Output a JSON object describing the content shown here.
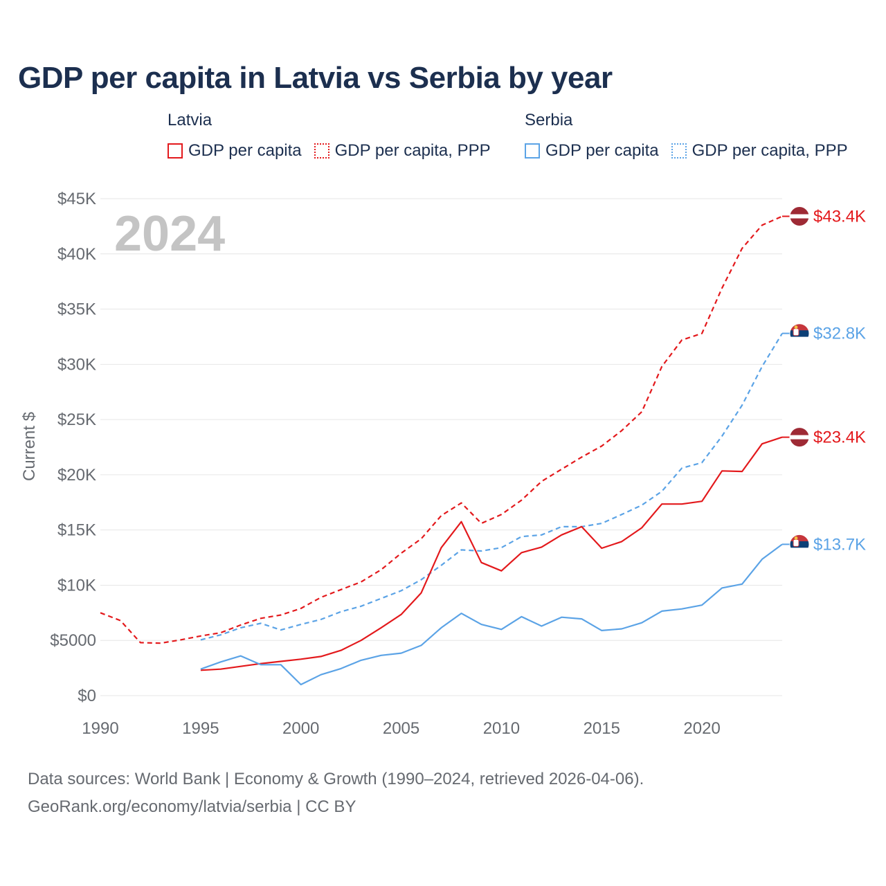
{
  "title": "GDP per capita in Latvia vs Serbia by year",
  "legend": {
    "groups": [
      {
        "name": "Latvia",
        "color": "#e3191c",
        "items": [
          {
            "label": "GDP per capita",
            "style": "solid"
          },
          {
            "label": "GDP per capita, PPP",
            "style": "dotted"
          }
        ]
      },
      {
        "name": "Serbia",
        "color": "#5ba3e6",
        "items": [
          {
            "label": "GDP per capita",
            "style": "solid"
          },
          {
            "label": "GDP per capita, PPP",
            "style": "dotted"
          }
        ]
      }
    ]
  },
  "source": {
    "line1": "Data sources: World Bank | Economy & Growth (1990–2024, retrieved 2026-04-06).",
    "line2": "GeoRank.org/economy/latvia/serbia | CC BY"
  },
  "chart_data": {
    "type": "line",
    "title": "GDP per capita in Latvia vs Serbia by year",
    "year_label": "2024",
    "xlabel": "",
    "ylabel": "Current $",
    "xlim": [
      1990,
      2024
    ],
    "ylim": [
      0,
      45000
    ],
    "x_ticks": [
      1990,
      1995,
      2000,
      2005,
      2010,
      2015,
      2020
    ],
    "y_ticks": [
      0,
      5000,
      10000,
      15000,
      20000,
      25000,
      30000,
      35000,
      40000,
      45000
    ],
    "y_tick_labels": [
      "$0",
      "$5000",
      "$10K",
      "$15K",
      "$20K",
      "$25K",
      "$30K",
      "$35K",
      "$40K",
      "$45K"
    ],
    "grid": true,
    "series": [
      {
        "name": "Latvia GDP per capita, PPP",
        "country": "Latvia",
        "color": "#e3191c",
        "dash": "dashed",
        "end_label": "$43.4K",
        "flag": "latvia",
        "x": [
          1990,
          1991,
          1992,
          1993,
          1994,
          1995,
          1996,
          1997,
          1998,
          1999,
          2000,
          2001,
          2002,
          2003,
          2004,
          2005,
          2006,
          2007,
          2008,
          2009,
          2010,
          2011,
          2012,
          2013,
          2014,
          2015,
          2016,
          2017,
          2018,
          2019,
          2020,
          2021,
          2022,
          2023,
          2024
        ],
        "values": [
          7500,
          6800,
          4800,
          4750,
          5050,
          5400,
          5700,
          6400,
          7000,
          7300,
          7900,
          8900,
          9600,
          10300,
          11400,
          12900,
          14200,
          16300,
          17450,
          15600,
          16400,
          17700,
          19400,
          20500,
          21600,
          22600,
          24000,
          25700,
          29800,
          32200,
          32800,
          36900,
          40500,
          42600,
          43400
        ]
      },
      {
        "name": "Serbia GDP per capita, PPP",
        "country": "Serbia",
        "color": "#5ba3e6",
        "dash": "dashed",
        "end_label": "$32.8K",
        "flag": "serbia",
        "x": [
          1995,
          1996,
          1997,
          1998,
          1999,
          2000,
          2001,
          2002,
          2003,
          2004,
          2005,
          2006,
          2007,
          2008,
          2009,
          2010,
          2011,
          2012,
          2013,
          2014,
          2015,
          2016,
          2017,
          2018,
          2019,
          2020,
          2021,
          2022,
          2023,
          2024
        ],
        "values": [
          5050,
          5500,
          6150,
          6550,
          5950,
          6450,
          6900,
          7600,
          8100,
          8800,
          9500,
          10500,
          11800,
          13200,
          13100,
          13400,
          14400,
          14550,
          15300,
          15300,
          15600,
          16400,
          17250,
          18500,
          20600,
          21100,
          23500,
          26300,
          29800,
          32800
        ]
      },
      {
        "name": "Latvia GDP per capita",
        "country": "Latvia",
        "color": "#e3191c",
        "dash": "solid",
        "end_label": "$23.4K",
        "flag": "latvia",
        "x": [
          1995,
          1996,
          1997,
          1998,
          1999,
          2000,
          2001,
          2002,
          2003,
          2004,
          2005,
          2006,
          2007,
          2008,
          2009,
          2010,
          2011,
          2012,
          2013,
          2014,
          2015,
          2016,
          2017,
          2018,
          2019,
          2020,
          2021,
          2022,
          2023,
          2024
        ],
        "values": [
          2300,
          2400,
          2650,
          2900,
          3100,
          3300,
          3550,
          4100,
          5000,
          6150,
          7350,
          9300,
          13400,
          15750,
          12050,
          11300,
          12950,
          13450,
          14550,
          15300,
          13350,
          13950,
          15200,
          17350,
          17350,
          17600,
          20350,
          20300,
          22800,
          23400
        ]
      },
      {
        "name": "Serbia GDP per capita",
        "country": "Serbia",
        "color": "#5ba3e6",
        "dash": "solid",
        "end_label": "$13.7K",
        "flag": "serbia",
        "x": [
          1995,
          1996,
          1997,
          1998,
          1999,
          2000,
          2001,
          2002,
          2003,
          2004,
          2005,
          2006,
          2007,
          2008,
          2009,
          2010,
          2011,
          2012,
          2013,
          2014,
          2015,
          2016,
          2017,
          2018,
          2019,
          2020,
          2021,
          2022,
          2023,
          2024
        ],
        "values": [
          2400,
          3050,
          3600,
          2800,
          2800,
          1000,
          1900,
          2450,
          3200,
          3650,
          3850,
          4550,
          6150,
          7450,
          6450,
          6000,
          7150,
          6300,
          7100,
          6950,
          5900,
          6050,
          6600,
          7650,
          7850,
          8200,
          9750,
          10100,
          12350,
          13700
        ]
      }
    ]
  }
}
